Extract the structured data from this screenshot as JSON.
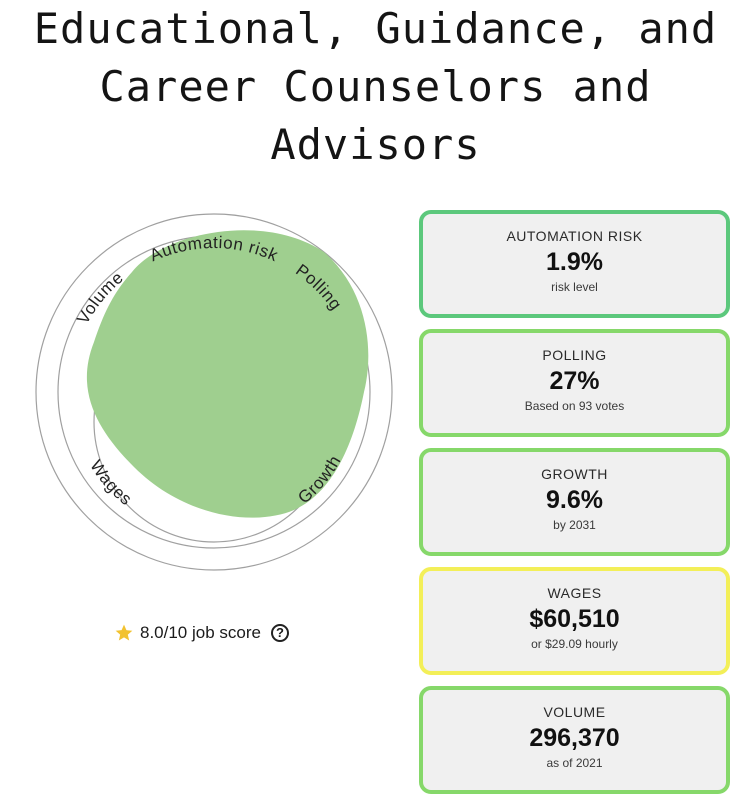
{
  "title": {
    "line1": "Educational, Guidance, and",
    "line2": "Career Counselors and",
    "line3": "Advisors"
  },
  "radar": {
    "axes": [
      "Automation risk",
      "Polling",
      "Growth",
      "Wages",
      "Volume"
    ],
    "fill_color": "#9fcf8f",
    "ring_color": "#9a9a9a"
  },
  "score": {
    "text": "8.0/10 job score",
    "star_color": "#f2c230",
    "help_icon": "question-circle-icon"
  },
  "cards": [
    {
      "label": "AUTOMATION RISK",
      "value": "1.9%",
      "sub": "risk level",
      "border": "#5cc87c"
    },
    {
      "label": "POLLING",
      "value": "27%",
      "sub": "Based on 93 votes",
      "border": "#86d86a"
    },
    {
      "label": "GROWTH",
      "value": "9.6%",
      "sub": "by 2031",
      "border": "#86d86a"
    },
    {
      "label": "WAGES",
      "value": "$60,510",
      "sub": "or $29.09 hourly",
      "border": "#f3ef58"
    },
    {
      "label": "VOLUME",
      "value": "296,370",
      "sub": "as of 2021",
      "border": "#86d86a"
    }
  ]
}
